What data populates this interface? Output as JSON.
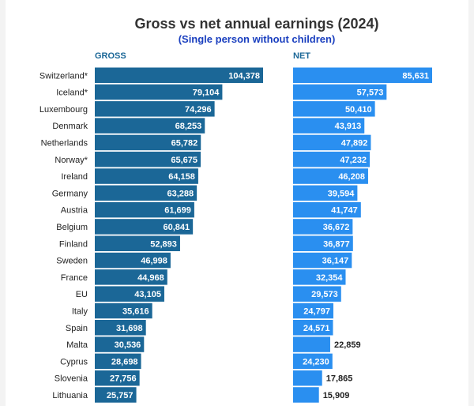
{
  "chart_data": {
    "type": "bar",
    "orientation": "horizontal",
    "title": "Gross vs net annual earnings (2024)",
    "subtitle": "(Single person without children)",
    "categories": [
      "Switzerland*",
      "Iceland*",
      "Luxembourg",
      "Denmark",
      "Netherlands",
      "Norway*",
      "Ireland",
      "Germany",
      "Austria",
      "Belgium",
      "Finland",
      "Sweden",
      "France",
      "EU",
      "Italy",
      "Spain",
      "Malta",
      "Cyprus",
      "Slovenia",
      "Lithuania"
    ],
    "series": [
      {
        "name": "GROSS",
        "color": "#1b6797",
        "labels": [
          "104,378",
          "79,104",
          "74,296",
          "68,253",
          "65,782",
          "65,675",
          "64,158",
          "63,288",
          "61,699",
          "60,841",
          "52,893",
          "46,998",
          "44,968",
          "43,105",
          "35,616",
          "31,698",
          "30,536",
          "28,698",
          "27,756",
          "25,757"
        ],
        "values": [
          104378,
          79104,
          74296,
          68253,
          65782,
          65675,
          64158,
          63288,
          61699,
          60841,
          52893,
          46998,
          44968,
          43105,
          35616,
          31698,
          30536,
          28698,
          27756,
          25757
        ]
      },
      {
        "name": "NET",
        "color": "#2a8ff0",
        "labels": [
          "85,631",
          "57,573",
          "50,410",
          "43,913",
          "47,892",
          "47,232",
          "46,208",
          "39,594",
          "41,747",
          "36,672",
          "36,877",
          "36,147",
          "32,354",
          "29,573",
          "24,797",
          "24,571",
          "22,859",
          "24,230",
          "17,865",
          "15,909"
        ],
        "values": [
          85631,
          57573,
          50410,
          43913,
          47892,
          47232,
          46208,
          39594,
          41747,
          36672,
          36877,
          36147,
          32354,
          29573,
          24797,
          24571,
          22859,
          24230,
          17865,
          15909
        ]
      }
    ],
    "legend": "none",
    "grid": false
  }
}
